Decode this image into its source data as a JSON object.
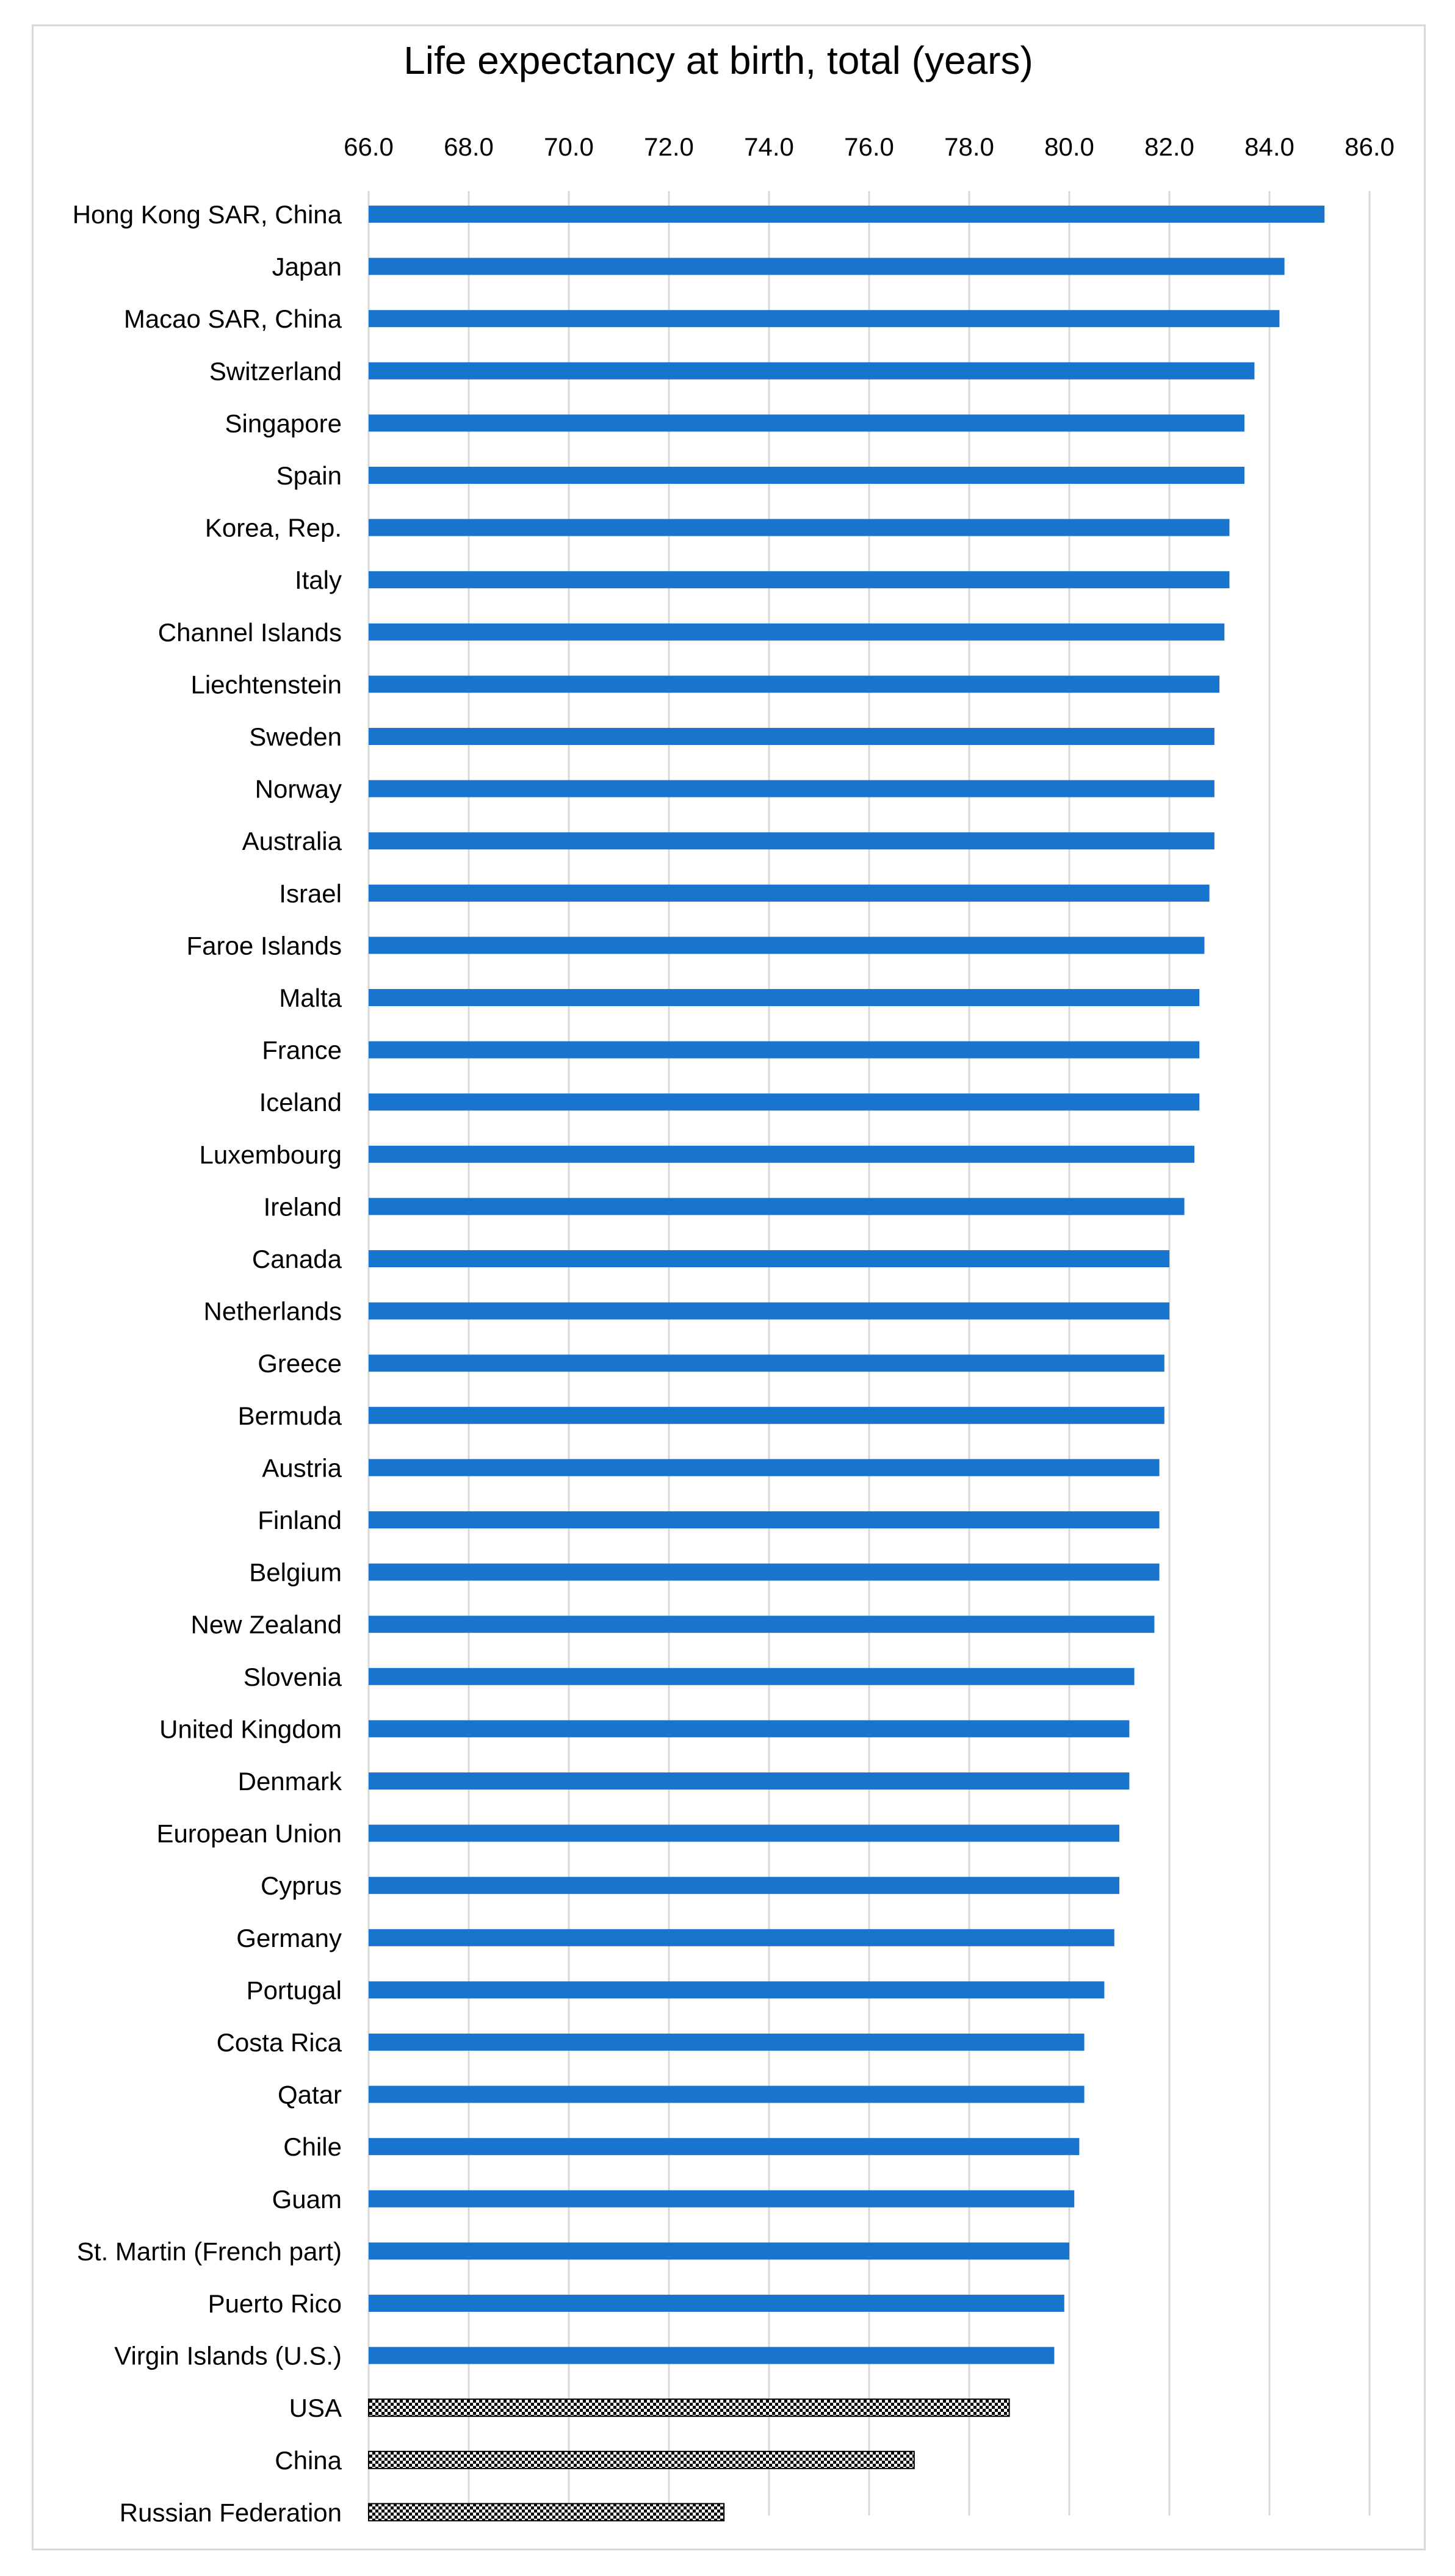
{
  "chart_data": {
    "type": "bar",
    "orientation": "horizontal",
    "title": "Life expectancy at birth, total (years)",
    "xlabel": "",
    "ylabel": "",
    "xlim": [
      66.0,
      86.0
    ],
    "ticks": [
      "66.0",
      "68.0",
      "70.0",
      "72.0",
      "74.0",
      "76.0",
      "78.0",
      "80.0",
      "82.0",
      "84.0",
      "86.0"
    ],
    "grid": true,
    "categories": [
      "Hong Kong SAR, China",
      "Japan",
      "Macao SAR, China",
      "Switzerland",
      "Singapore",
      "Spain",
      "Korea, Rep.",
      "Italy",
      "Channel Islands",
      "Liechtenstein",
      "Sweden",
      "Norway",
      "Australia",
      "Israel",
      "Faroe Islands",
      "Malta",
      "France",
      "Iceland",
      "Luxembourg",
      "Ireland",
      "Canada",
      "Netherlands",
      "Greece",
      "Bermuda",
      "Austria",
      "Finland",
      "Belgium",
      "New Zealand",
      "Slovenia",
      "United Kingdom",
      "Denmark",
      "European Union",
      "Cyprus",
      "Germany",
      "Portugal",
      "Costa Rica",
      "Qatar",
      "Chile",
      "Guam",
      "St. Martin (French part)",
      "Puerto Rico",
      "Virgin Islands (U.S.)",
      "USA",
      "China",
      "Russian Federation"
    ],
    "values": [
      85.1,
      84.3,
      84.2,
      83.7,
      83.5,
      83.5,
      83.2,
      83.2,
      83.1,
      83.0,
      82.9,
      82.9,
      82.9,
      82.8,
      82.7,
      82.6,
      82.6,
      82.6,
      82.5,
      82.3,
      82.0,
      82.0,
      81.9,
      81.9,
      81.8,
      81.8,
      81.8,
      81.7,
      81.3,
      81.2,
      81.2,
      81.0,
      81.0,
      80.9,
      80.7,
      80.3,
      80.3,
      80.2,
      80.1,
      80.0,
      79.9,
      79.7,
      78.8,
      76.9,
      73.1
    ],
    "highlight": [
      "USA",
      "China",
      "Russian Federation"
    ],
    "colors": {
      "bar": "#1874CD",
      "highlight_pattern": "#000000",
      "gridline": "#D9D9D9"
    }
  }
}
